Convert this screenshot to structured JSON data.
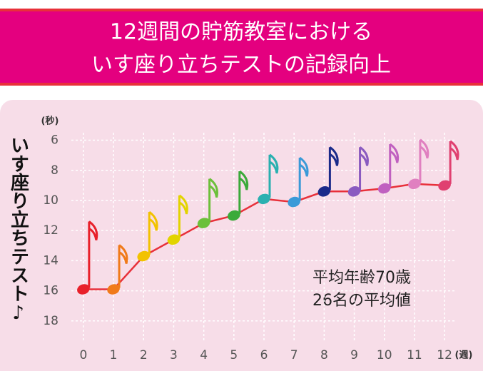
{
  "chart_data": {
    "type": "line",
    "title": [
      "12週間の貯筋教室における",
      "いす座り立ちテストの記録向上"
    ],
    "ylabel": "いす座り立ちテスト♪",
    "ylabel_unit": "(秒)",
    "xlabel_unit": "(週)",
    "annotations": [
      "平均年齢70歳",
      "26名の平均値"
    ],
    "x": [
      0,
      1,
      2,
      3,
      4,
      5,
      6,
      7,
      8,
      9,
      10,
      11,
      12
    ],
    "series": [
      {
        "color": "#e8303a",
        "marker_colors": [
          "#e8202a",
          "#f07a1a",
          "#f2c200",
          "#e2d400",
          "#6cc03a",
          "#3aaa3a",
          "#2ab0b0",
          "#3a9ad8",
          "#1a2a8a",
          "#8a5ac0",
          "#c060c0",
          "#e080c0",
          "#e04070"
        ],
        "values": [
          15.9,
          15.9,
          13.7,
          12.6,
          11.5,
          11.0,
          9.9,
          10.1,
          9.4,
          9.4,
          9.2,
          8.9,
          9.0
        ]
      }
    ],
    "xlim": [
      -0.4,
      12.4
    ],
    "xticks": [
      0,
      1,
      2,
      3,
      4,
      5,
      6,
      7,
      8,
      9,
      10,
      11,
      12
    ],
    "ylim": [
      5.5,
      20
    ],
    "yticks": [
      6,
      8,
      10,
      12,
      14,
      16,
      18
    ],
    "y_inverted": true,
    "grid": true
  }
}
